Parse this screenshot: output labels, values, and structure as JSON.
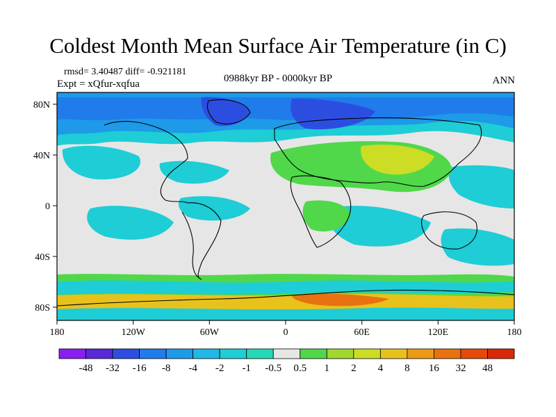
{
  "title": "Coldest Month Mean Surface Air Temperature (in C)",
  "stats": {
    "rmsd_line": "rmsd= 3.40487 diff= -0.921181",
    "experiment": "Expt = xQfur-xqfua",
    "period": "0988kyr BP - 0000kyr BP",
    "season": "ANN"
  },
  "axes": {
    "lon_ticks": [
      "180",
      "120W",
      "60W",
      "0",
      "60E",
      "120E",
      "180"
    ],
    "lat_ticks": [
      "80N",
      "40N",
      "0",
      "40S",
      "80S"
    ]
  },
  "colorbar": {
    "labels": [
      "-48",
      "-32",
      "-16",
      "-8",
      "-4",
      "-2",
      "-1",
      "-0.5",
      "0.5",
      "1",
      "2",
      "4",
      "8",
      "16",
      "32",
      "48"
    ],
    "colors": [
      "#8a1ef2",
      "#5a28d6",
      "#2c4ee0",
      "#1f7cea",
      "#1e9ae8",
      "#21b8e6",
      "#1ecdd6",
      "#22d9b4",
      "#e6e6e6",
      "#50d84a",
      "#a0d82e",
      "#cddc24",
      "#e8c21c",
      "#eb9a14",
      "#e87210",
      "#e54a0c",
      "#d8280a"
    ]
  },
  "map_fields": [
    {
      "value": "-16",
      "color": "#2c4ee0"
    },
    {
      "value": "-8",
      "color": "#1f7cea"
    },
    {
      "value": "-4",
      "color": "#1e9ae8"
    },
    {
      "value": "-1",
      "color": "#1ecdd6"
    },
    {
      "value": "0",
      "color": "#e6e6e6"
    },
    {
      "value": "1",
      "color": "#50d84a"
    },
    {
      "value": "4",
      "color": "#cddc24"
    },
    {
      "value": "8",
      "color": "#e8c21c"
    },
    {
      "value": "16",
      "color": "#e87210"
    }
  ]
}
